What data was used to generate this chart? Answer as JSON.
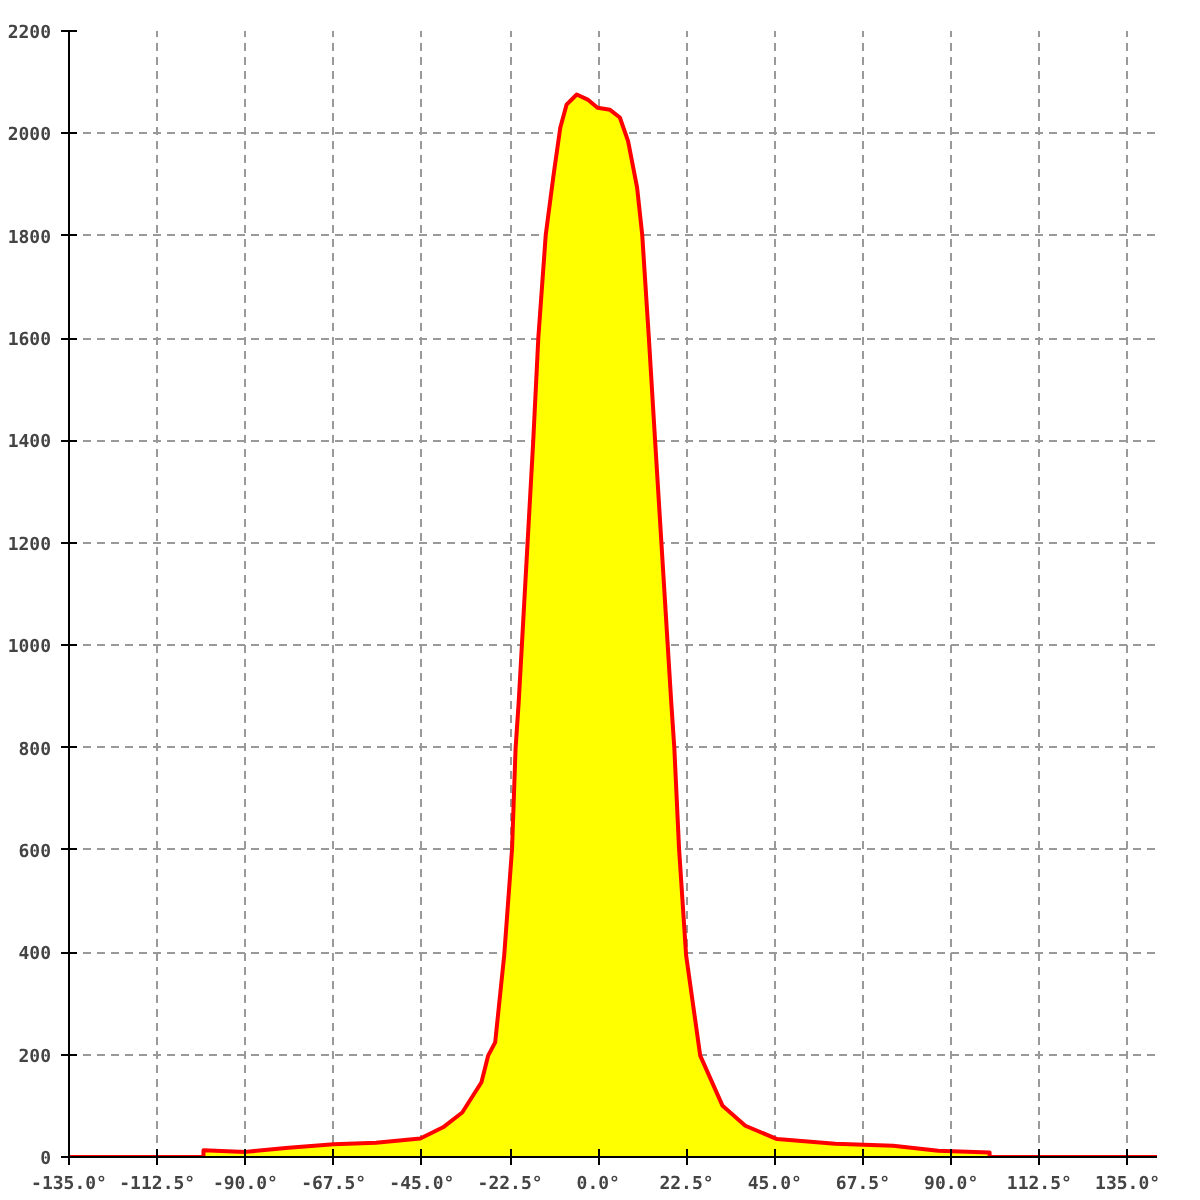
{
  "chart_data": {
    "type": "area",
    "xlim": [
      -135,
      142.5
    ],
    "ylim": [
      0,
      2200
    ],
    "xticks": [
      {
        "value": -135,
        "label": "-135.0°"
      },
      {
        "value": -112.5,
        "label": "-112.5°"
      },
      {
        "value": -90,
        "label": "-90.0°"
      },
      {
        "value": -67.5,
        "label": "-67.5°"
      },
      {
        "value": -45,
        "label": "-45.0°"
      },
      {
        "value": -22.5,
        "label": "-22.5°"
      },
      {
        "value": 0,
        "label": "0.0°"
      },
      {
        "value": 22.5,
        "label": "22.5°"
      },
      {
        "value": 45,
        "label": "45.0°"
      },
      {
        "value": 67.5,
        "label": "67.5°"
      },
      {
        "value": 90,
        "label": "90.0°"
      },
      {
        "value": 112.5,
        "label": "112.5°"
      },
      {
        "value": 135,
        "label": "135.0°"
      }
    ],
    "yticks": [
      0,
      200,
      400,
      600,
      800,
      1000,
      1200,
      1400,
      1600,
      1800,
      2000,
      2200
    ],
    "grid": true,
    "series": [
      {
        "color": "#ffff00",
        "x": [
          -100.7,
          -90,
          -79,
          -67.5,
          -56.7,
          -45.4,
          -39.6,
          -34.7,
          -29.8,
          -28.1,
          -26.3,
          -24.0,
          -22.0,
          -21.1,
          -20.3,
          -16.6,
          -15.3,
          -13.4,
          -11.4,
          -9.7,
          -8.1,
          -5.5,
          -2.7,
          -0.2,
          3.0,
          5.5,
          7.6,
          9.9,
          11.2,
          12.9,
          14.5,
          18.6,
          19.4,
          20.6,
          22.4,
          26.0,
          31.7,
          37.5,
          45.6,
          60.4,
          75.2,
          86.7,
          99.8
        ],
        "values": [
          13,
          10,
          18,
          25,
          28,
          36,
          58,
          87,
          146,
          198,
          224,
          394,
          602,
          798,
          889,
          1398,
          1600,
          1802,
          1919,
          2011,
          2056,
          2076,
          2066,
          2050,
          2046,
          2031,
          1985,
          1894,
          1802,
          1600,
          1398,
          889,
          798,
          602,
          394,
          198,
          100,
          61,
          35,
          26,
          22,
          12,
          9
        ]
      },
      {
        "type": "line",
        "color": "#ff0000",
        "x": [
          -135,
          -100.7,
          -100.7,
          -90,
          -79,
          -67.5,
          -56.7,
          -45.4,
          -39.6,
          -34.7,
          -29.8,
          -28.1,
          -26.3,
          -24.0,
          -22.0,
          -21.1,
          -20.3,
          -16.6,
          -15.3,
          -13.4,
          -11.4,
          -9.7,
          -8.1,
          -5.5,
          -2.7,
          -0.2,
          3.0,
          5.5,
          7.6,
          9.9,
          11.2,
          12.9,
          14.5,
          18.6,
          19.4,
          20.6,
          22.4,
          26.0,
          31.7,
          37.5,
          45.6,
          60.4,
          75.2,
          86.7,
          99.8,
          99.8,
          142.5
        ],
        "values": [
          0,
          0,
          13,
          10,
          18,
          25,
          28,
          36,
          58,
          87,
          146,
          198,
          224,
          394,
          602,
          798,
          889,
          1398,
          1600,
          1802,
          1919,
          2011,
          2056,
          2076,
          2066,
          2050,
          2046,
          2031,
          1985,
          1894,
          1802,
          1600,
          1398,
          889,
          798,
          602,
          394,
          198,
          100,
          61,
          35,
          26,
          22,
          12,
          9,
          0,
          0
        ]
      }
    ]
  }
}
